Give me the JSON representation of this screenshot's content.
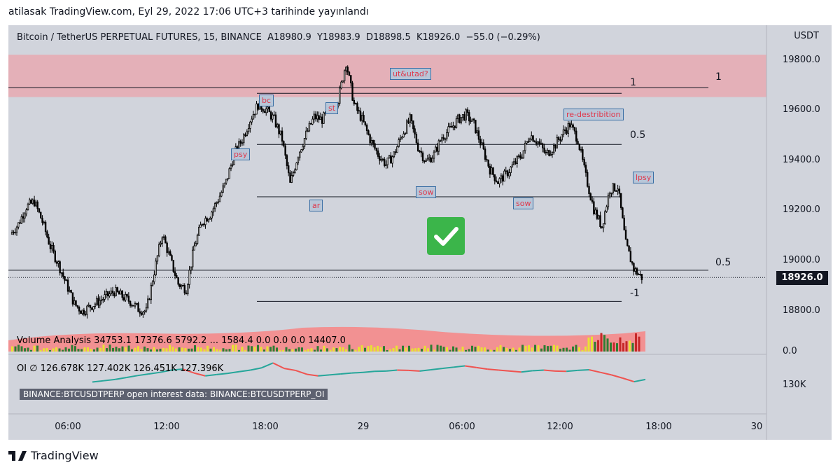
{
  "publisher_line": "atilasak TradingView.com, Eyl 29, 2022 17:06 UTC+3 tarihinde yayınlandı",
  "title_line": "Bitcoin / TetherUS PERPETUAL FUTURES, 15, BINANCE  A18980.9  Y18983.9  D18898.5  K18926.0  −55.0 (−0.29%)",
  "currency": "USDT",
  "last_price": "18926.0",
  "volume_indicator_label": "Volume Analysis  34753.1  17376.6  5792.2  ...  1584.4  0.0  0.0  0.0  14407.0",
  "oi_indicator_label": "OI  ∅  126.678K  127.402K  126.451K  127.396K",
  "oi_badge": "BINANCE:BTCUSDTPERP open interest data: BINANCE:BTCUSDTPERP_OI",
  "volume_axis_label": "0.0",
  "oi_axis_label": "130K",
  "footer_brand": "TradingView",
  "annotations": {
    "psy": "psy",
    "bc": "bc",
    "st": "st",
    "ar": "ar",
    "sow1": "sow",
    "ut_utad": "ut&utad?",
    "sow2": "sow",
    "redistribution": "re-destribition",
    "lpsy": "lpsy",
    "lvl_1_right": "1",
    "lvl_1": "1",
    "lvl_05_upper": "0.5",
    "lvl_05_lower": "0.5",
    "lvl_m1": "-1"
  },
  "colors": {
    "resistance_zone": "#e7a9b2",
    "up_candle": "#ffffff",
    "down_candle": "#000000",
    "oi_up": "#26a69a",
    "oi_down": "#ef5350",
    "check": "#3bb54a"
  },
  "chart_data": {
    "type": "candlestick",
    "symbol": "BTCUSDTPERP",
    "timeframe": "15",
    "y_axis_ticks": [
      19800.0,
      19600.0,
      19400.0,
      19200.0,
      19000.0,
      18800.0
    ],
    "x_axis_ticks": [
      "06:00",
      "12:00",
      "18:00",
      "29",
      "06:00",
      "12:00",
      "18:00",
      "30"
    ],
    "ylim": [
      18730,
      19840
    ],
    "resistance_zone": [
      19650,
      19820
    ],
    "horizontal_levels": [
      19688,
      19665,
      19460,
      19250,
      18955,
      18830
    ],
    "price_path": [
      19100,
      19140,
      19210,
      19230,
      19150,
      19050,
      18980,
      18900,
      18820,
      18790,
      18810,
      18830,
      18850,
      18870,
      18850,
      18830,
      18800,
      18790,
      18950,
      19100,
      19000,
      18900,
      18880,
      19050,
      19150,
      19180,
      19240,
      19310,
      19420,
      19480,
      19560,
      19620,
      19600,
      19560,
      19480,
      19300,
      19420,
      19500,
      19570,
      19560,
      19600,
      19640,
      19790,
      19620,
      19560,
      19480,
      19420,
      19380,
      19420,
      19500,
      19560,
      19450,
      19390,
      19420,
      19490,
      19520,
      19560,
      19580,
      19540,
      19450,
      19360,
      19310,
      19340,
      19380,
      19420,
      19500,
      19470,
      19420,
      19450,
      19500,
      19540,
      19480,
      19330,
      19200,
      19130,
      19280,
      19290,
      19060,
      18960,
      18926
    ],
    "oi_path": [
      126.6,
      127.0,
      127.4,
      128.0,
      128.6,
      129.1,
      129.6,
      130.3,
      130.6,
      129.4,
      128.5,
      128.9,
      129.3,
      129.8,
      130.3,
      131.0,
      132.5,
      130.8,
      130.2,
      129.0,
      128.5,
      128.8,
      129.1,
      129.4,
      129.6,
      129.9,
      130.0,
      130.3,
      130.2,
      130.0,
      130.4,
      130.8,
      131.2,
      131.6,
      131.1,
      130.6,
      130.3,
      130.0,
      129.7,
      130.1,
      130.3,
      130.0,
      129.9,
      130.2,
      130.4,
      129.6,
      128.8,
      127.8,
      126.7,
      127.4
    ]
  }
}
